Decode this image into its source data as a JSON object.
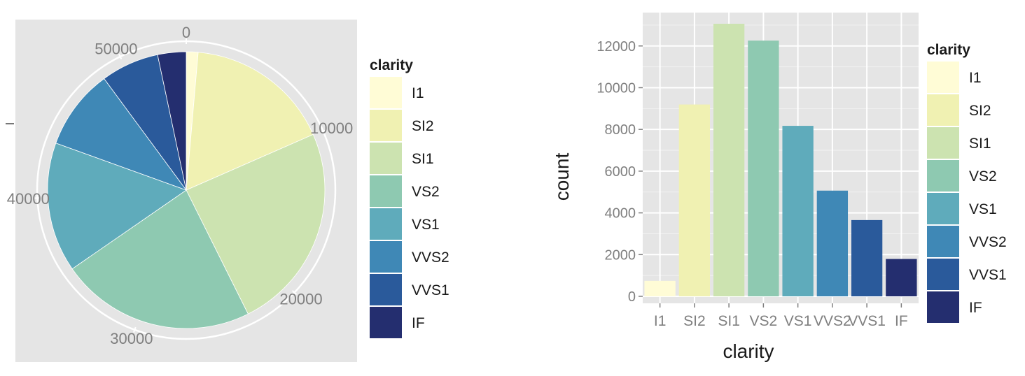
{
  "legend_title": "clarity",
  "categories": [
    "I1",
    "SI2",
    "SI1",
    "VS2",
    "VS1",
    "VVS2",
    "VVS1",
    "IF"
  ],
  "colors": [
    "#fffcd6",
    "#f0f1b2",
    "#cce3b0",
    "#8ec9b1",
    "#5fabbb",
    "#3f88b6",
    "#2a5a9b",
    "#242e6f"
  ],
  "pie_chart": {
    "type": "pie",
    "title": "",
    "radial_ticks": [
      "0",
      "10000",
      "20000",
      "30000",
      "40000",
      "50000"
    ],
    "categories": [
      "I1",
      "SI2",
      "SI1",
      "VS2",
      "VS1",
      "VVS2",
      "VVS1",
      "IF"
    ],
    "values": [
      741,
      9194,
      13065,
      12258,
      8171,
      5066,
      3655,
      1790
    ],
    "total": 53940,
    "legend": "right"
  },
  "chart_data": {
    "type": "bar",
    "categories": [
      "I1",
      "SI2",
      "SI1",
      "VS2",
      "VS1",
      "VVS2",
      "VVS1",
      "IF"
    ],
    "values": [
      741,
      9194,
      13065,
      12258,
      8171,
      5066,
      3655,
      1790
    ],
    "title": "",
    "xlabel": "clarity",
    "ylabel": "count",
    "ylim": [
      0,
      13600
    ],
    "yticks": [
      "0",
      "2000",
      "4000",
      "6000",
      "8000",
      "10000",
      "12000"
    ],
    "grid": true,
    "legend": "right"
  }
}
